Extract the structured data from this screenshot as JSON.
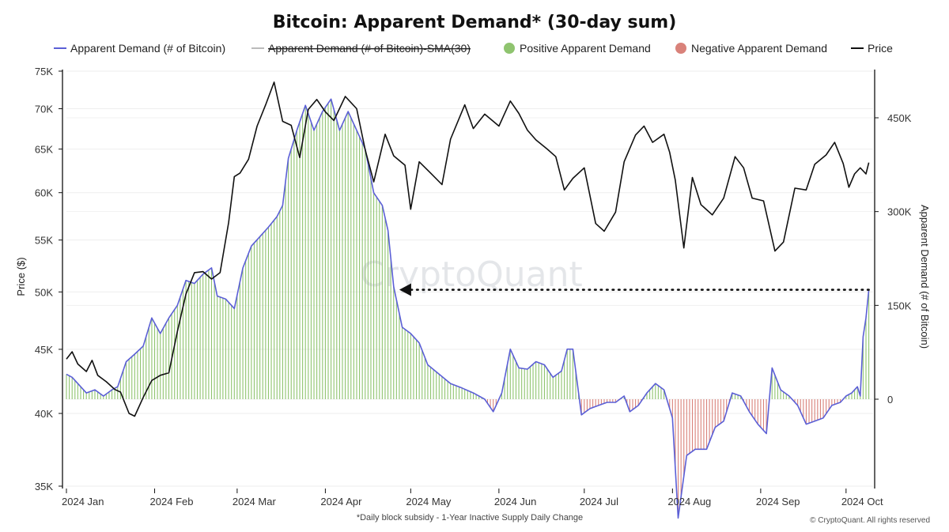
{
  "chart_data": {
    "type": "line",
    "title": "Bitcoin: Apparent Demand* (30-day sum)",
    "y_left_label": "Price ($)",
    "y_right_label": "Apparent Demand (# of Bitcoin)",
    "y_left_range": [
      35000,
      75000
    ],
    "y_left_scale": "log",
    "y_left_ticks": [
      "75K",
      "70K",
      "65K",
      "60K",
      "55K",
      "50K",
      "45K",
      "40K",
      "35K"
    ],
    "y_right_range": [
      -300000,
      520000
    ],
    "y_right_ticks": [
      "450K",
      "300K",
      "150K",
      "0"
    ],
    "x_ticks": [
      "2024 Jan",
      "2024 Feb",
      "2024 Mar",
      "2024 Apr",
      "2024 May",
      "2024 Jun",
      "2024 Jul",
      "2024 Aug",
      "2024 Sep",
      "2024 Oct"
    ],
    "x_range": [
      "2024-01-01",
      "2024-10-09"
    ],
    "footnote": "*Daily block subsidy - 1-Year Inactive Supply Daily Change",
    "copyright": "© CryptoQuant. All rights reserved",
    "watermark": "CryptoQuant",
    "legend_position": "top",
    "colors": {
      "demand_line": "#5b5fd6",
      "sma": "#bbbbbb",
      "positive": "#8fc46f",
      "negative": "#d9827a",
      "price": "#111111"
    },
    "legend": [
      {
        "label": "Apparent Demand (# of Bitcoin)",
        "kind": "line",
        "color": "#5b5fd6",
        "strike": false
      },
      {
        "label": "Apparent Demand (# of Bitcoin)-SMA(30)",
        "kind": "line",
        "color": "#bbbbbb",
        "strike": true
      },
      {
        "label": "Positive Apparent Demand",
        "kind": "dot",
        "color": "#8fc46f",
        "strike": false
      },
      {
        "label": "Negative Apparent Demand",
        "kind": "dot",
        "color": "#d9827a",
        "strike": false
      },
      {
        "label": "Price",
        "kind": "line",
        "color": "#111111",
        "strike": false
      }
    ],
    "annotation": {
      "type": "dotted-arrow",
      "demand_value": 175000,
      "from_date": "2024-10-09",
      "to_date": "2024-04-27"
    },
    "series": [
      {
        "name": "Price",
        "axis": "left",
        "points": [
          [
            "2024-01-01",
            44200
          ],
          [
            "2024-01-03",
            44800
          ],
          [
            "2024-01-05",
            43800
          ],
          [
            "2024-01-08",
            43200
          ],
          [
            "2024-01-10",
            44100
          ],
          [
            "2024-01-12",
            42900
          ],
          [
            "2024-01-15",
            42400
          ],
          [
            "2024-01-18",
            41800
          ],
          [
            "2024-01-20",
            41600
          ],
          [
            "2024-01-23",
            40000
          ],
          [
            "2024-01-25",
            39800
          ],
          [
            "2024-01-28",
            41200
          ],
          [
            "2024-01-31",
            42500
          ],
          [
            "2024-02-03",
            42900
          ],
          [
            "2024-02-06",
            43100
          ],
          [
            "2024-02-09",
            46500
          ],
          [
            "2024-02-12",
            49800
          ],
          [
            "2024-02-15",
            51800
          ],
          [
            "2024-02-18",
            51900
          ],
          [
            "2024-02-21",
            51200
          ],
          [
            "2024-02-24",
            51800
          ],
          [
            "2024-02-27",
            56800
          ],
          [
            "2024-02-29",
            61800
          ],
          [
            "2024-03-02",
            62200
          ],
          [
            "2024-03-05",
            63800
          ],
          [
            "2024-03-08",
            67800
          ],
          [
            "2024-03-11",
            70500
          ],
          [
            "2024-03-14",
            73500
          ],
          [
            "2024-03-17",
            68400
          ],
          [
            "2024-03-20",
            67900
          ],
          [
            "2024-03-23",
            64000
          ],
          [
            "2024-03-26",
            69900
          ],
          [
            "2024-03-29",
            71200
          ],
          [
            "2024-04-01",
            69600
          ],
          [
            "2024-04-04",
            68500
          ],
          [
            "2024-04-08",
            71600
          ],
          [
            "2024-04-12",
            70000
          ],
          [
            "2024-04-15",
            64900
          ],
          [
            "2024-04-18",
            61200
          ],
          [
            "2024-04-22",
            66800
          ],
          [
            "2024-04-25",
            64200
          ],
          [
            "2024-04-29",
            63100
          ],
          [
            "2024-05-01",
            58200
          ],
          [
            "2024-05-04",
            63500
          ],
          [
            "2024-05-08",
            62200
          ],
          [
            "2024-05-12",
            60900
          ],
          [
            "2024-05-15",
            66200
          ],
          [
            "2024-05-20",
            70500
          ],
          [
            "2024-05-23",
            67500
          ],
          [
            "2024-05-27",
            69300
          ],
          [
            "2024-06-01",
            67800
          ],
          [
            "2024-06-05",
            71000
          ],
          [
            "2024-06-08",
            69400
          ],
          [
            "2024-06-11",
            67300
          ],
          [
            "2024-06-14",
            66100
          ],
          [
            "2024-06-18",
            65000
          ],
          [
            "2024-06-21",
            64100
          ],
          [
            "2024-06-24",
            60300
          ],
          [
            "2024-06-27",
            61600
          ],
          [
            "2024-07-01",
            62800
          ],
          [
            "2024-07-05",
            56700
          ],
          [
            "2024-07-08",
            55900
          ],
          [
            "2024-07-12",
            57900
          ],
          [
            "2024-07-15",
            63500
          ],
          [
            "2024-07-19",
            66700
          ],
          [
            "2024-07-22",
            67800
          ],
          [
            "2024-07-25",
            65800
          ],
          [
            "2024-07-29",
            66800
          ],
          [
            "2024-07-31",
            64600
          ],
          [
            "2024-08-02",
            61400
          ],
          [
            "2024-08-05",
            54200
          ],
          [
            "2024-08-08",
            61700
          ],
          [
            "2024-08-11",
            58700
          ],
          [
            "2024-08-15",
            57600
          ],
          [
            "2024-08-19",
            59400
          ],
          [
            "2024-08-23",
            64100
          ],
          [
            "2024-08-26",
            62800
          ],
          [
            "2024-08-29",
            59400
          ],
          [
            "2024-09-02",
            59100
          ],
          [
            "2024-09-06",
            53900
          ],
          [
            "2024-09-09",
            54800
          ],
          [
            "2024-09-13",
            60500
          ],
          [
            "2024-09-17",
            60300
          ],
          [
            "2024-09-20",
            63200
          ],
          [
            "2024-09-24",
            64300
          ],
          [
            "2024-09-27",
            65800
          ],
          [
            "2024-09-30",
            63300
          ],
          [
            "2024-10-02",
            60600
          ],
          [
            "2024-10-04",
            62100
          ],
          [
            "2024-10-06",
            62800
          ],
          [
            "2024-10-08",
            62100
          ],
          [
            "2024-10-09",
            63400
          ]
        ]
      },
      {
        "name": "Apparent Demand (# of Bitcoin)",
        "axis": "right",
        "points": [
          [
            "2024-01-01",
            40000
          ],
          [
            "2024-01-03",
            35000
          ],
          [
            "2024-01-05",
            25000
          ],
          [
            "2024-01-08",
            10000
          ],
          [
            "2024-01-11",
            15000
          ],
          [
            "2024-01-14",
            5000
          ],
          [
            "2024-01-17",
            15000
          ],
          [
            "2024-01-19",
            20000
          ],
          [
            "2024-01-22",
            60000
          ],
          [
            "2024-01-25",
            72000
          ],
          [
            "2024-01-28",
            85000
          ],
          [
            "2024-01-31",
            130000
          ],
          [
            "2024-02-03",
            105000
          ],
          [
            "2024-02-06",
            130000
          ],
          [
            "2024-02-09",
            150000
          ],
          [
            "2024-02-12",
            190000
          ],
          [
            "2024-02-15",
            185000
          ],
          [
            "2024-02-18",
            200000
          ],
          [
            "2024-02-21",
            210000
          ],
          [
            "2024-02-23",
            165000
          ],
          [
            "2024-02-26",
            160000
          ],
          [
            "2024-02-29",
            145000
          ],
          [
            "2024-03-03",
            210000
          ],
          [
            "2024-03-06",
            245000
          ],
          [
            "2024-03-09",
            260000
          ],
          [
            "2024-03-12",
            275000
          ],
          [
            "2024-03-15",
            292000
          ],
          [
            "2024-03-17",
            310000
          ],
          [
            "2024-03-19",
            385000
          ],
          [
            "2024-03-22",
            430000
          ],
          [
            "2024-03-25",
            470000
          ],
          [
            "2024-03-28",
            430000
          ],
          [
            "2024-03-31",
            460000
          ],
          [
            "2024-04-03",
            480000
          ],
          [
            "2024-04-06",
            430000
          ],
          [
            "2024-04-09",
            460000
          ],
          [
            "2024-04-12",
            430000
          ],
          [
            "2024-04-15",
            400000
          ],
          [
            "2024-04-18",
            330000
          ],
          [
            "2024-04-21",
            310000
          ],
          [
            "2024-04-23",
            270000
          ],
          [
            "2024-04-25",
            180000
          ],
          [
            "2024-04-28",
            115000
          ],
          [
            "2024-05-01",
            105000
          ],
          [
            "2024-05-04",
            90000
          ],
          [
            "2024-05-07",
            55000
          ],
          [
            "2024-05-11",
            40000
          ],
          [
            "2024-05-15",
            25000
          ],
          [
            "2024-05-19",
            18000
          ],
          [
            "2024-05-23",
            10000
          ],
          [
            "2024-05-27",
            0
          ],
          [
            "2024-05-30",
            -20000
          ],
          [
            "2024-06-02",
            10000
          ],
          [
            "2024-06-05",
            80000
          ],
          [
            "2024-06-08",
            50000
          ],
          [
            "2024-06-11",
            48000
          ],
          [
            "2024-06-14",
            60000
          ],
          [
            "2024-06-17",
            55000
          ],
          [
            "2024-06-20",
            35000
          ],
          [
            "2024-06-23",
            45000
          ],
          [
            "2024-06-25",
            80000
          ],
          [
            "2024-06-27",
            80000
          ],
          [
            "2024-06-30",
            -25000
          ],
          [
            "2024-07-03",
            -15000
          ],
          [
            "2024-07-06",
            -10000
          ],
          [
            "2024-07-09",
            -5000
          ],
          [
            "2024-07-12",
            -5000
          ],
          [
            "2024-07-15",
            5000
          ],
          [
            "2024-07-17",
            -20000
          ],
          [
            "2024-07-20",
            -10000
          ],
          [
            "2024-07-23",
            10000
          ],
          [
            "2024-07-26",
            25000
          ],
          [
            "2024-07-29",
            15000
          ],
          [
            "2024-08-01",
            -30000
          ],
          [
            "2024-08-03",
            -190000
          ],
          [
            "2024-08-06",
            -90000
          ],
          [
            "2024-08-09",
            -80000
          ],
          [
            "2024-08-13",
            -80000
          ],
          [
            "2024-08-16",
            -45000
          ],
          [
            "2024-08-19",
            -35000
          ],
          [
            "2024-08-22",
            10000
          ],
          [
            "2024-08-25",
            5000
          ],
          [
            "2024-08-28",
            -20000
          ],
          [
            "2024-08-31",
            -40000
          ],
          [
            "2024-09-03",
            -55000
          ],
          [
            "2024-09-05",
            50000
          ],
          [
            "2024-09-08",
            15000
          ],
          [
            "2024-09-11",
            5000
          ],
          [
            "2024-09-14",
            -10000
          ],
          [
            "2024-09-17",
            -40000
          ],
          [
            "2024-09-20",
            -35000
          ],
          [
            "2024-09-23",
            -30000
          ],
          [
            "2024-09-26",
            -10000
          ],
          [
            "2024-09-29",
            -5000
          ],
          [
            "2024-10-01",
            5000
          ],
          [
            "2024-10-03",
            10000
          ],
          [
            "2024-10-05",
            20000
          ],
          [
            "2024-10-06",
            5000
          ],
          [
            "2024-10-07",
            100000
          ],
          [
            "2024-10-08",
            130000
          ],
          [
            "2024-10-09",
            175000
          ]
        ]
      }
    ]
  }
}
